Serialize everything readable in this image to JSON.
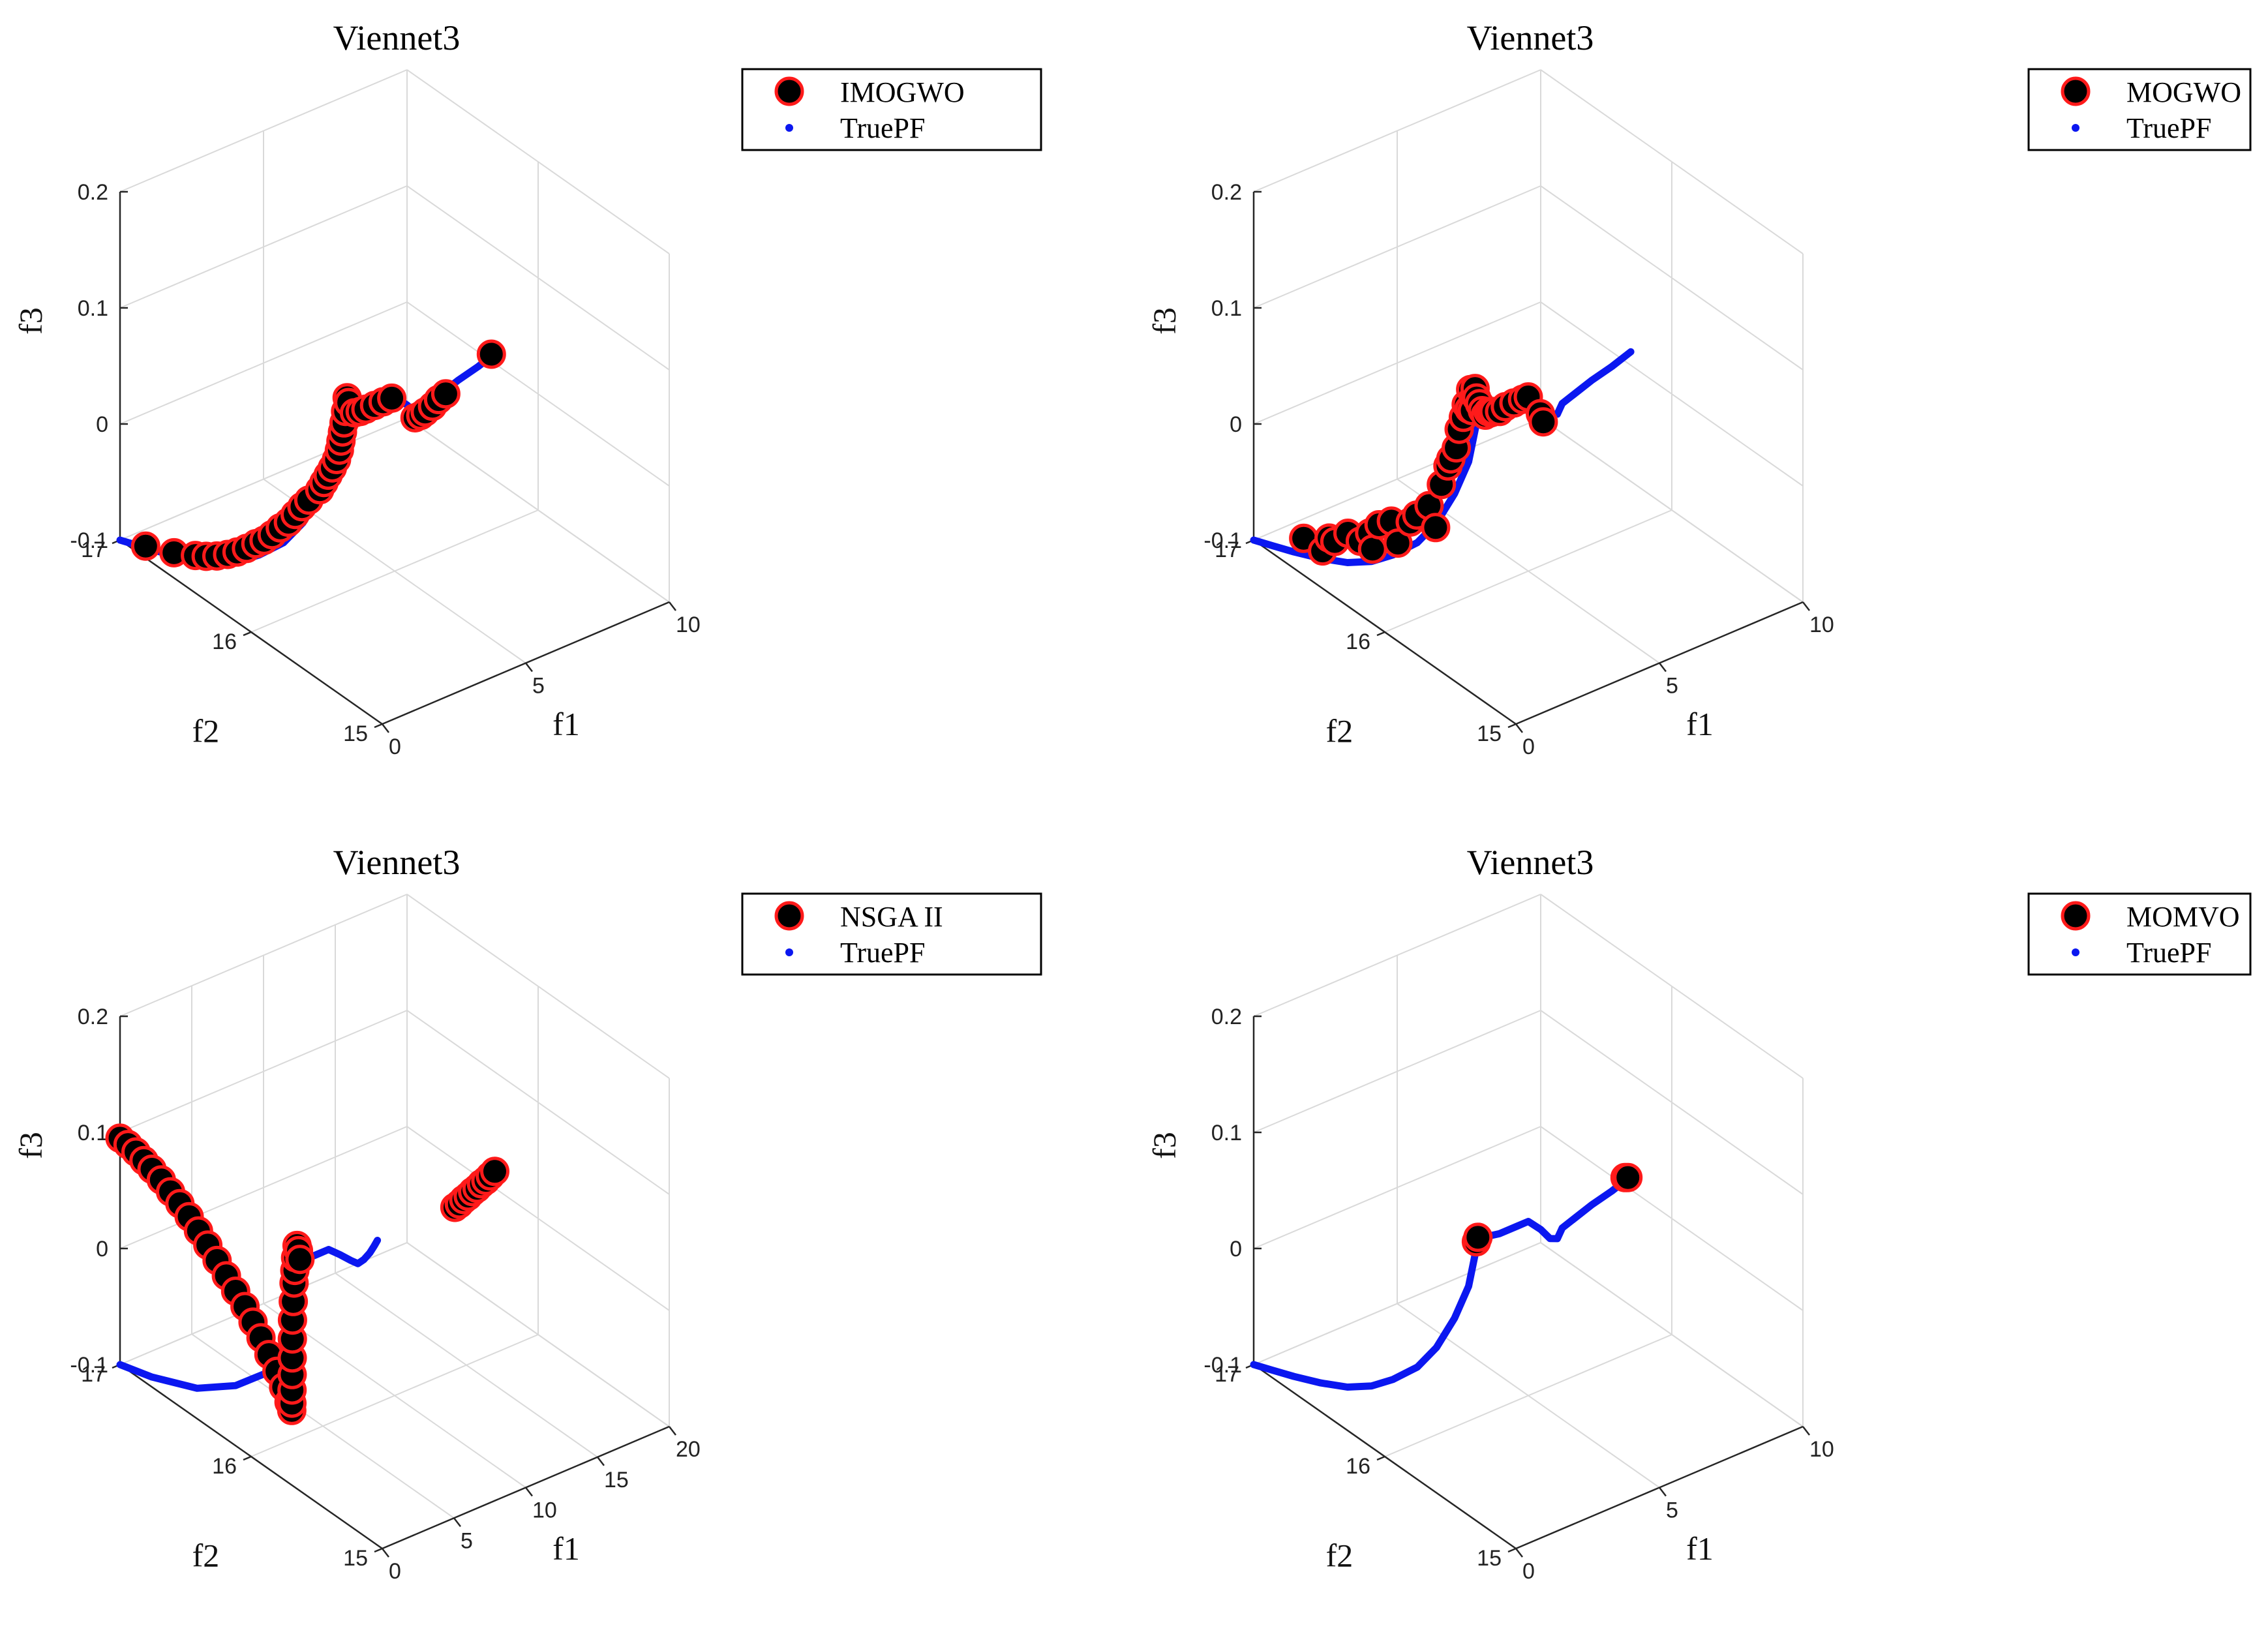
{
  "colors": {
    "marker_fill": "#000000",
    "marker_edge": "#ff1a1a",
    "truepf": "#0b17f0",
    "grid": "#d9d9d9",
    "axis": "#262626"
  },
  "chart_data": [
    {
      "type": "scatter",
      "title": "Viennet3",
      "xlabel": "f1",
      "ylabel": "f2",
      "zlabel": "f3",
      "xlim": [
        0,
        10
      ],
      "ylim": [
        15,
        17
      ],
      "zlim": [
        -0.1,
        0.2
      ],
      "xticks": [
        "0",
        "5",
        "10"
      ],
      "yticks": [
        "15",
        "16",
        "17"
      ],
      "zticks": [
        "-0.1",
        "0",
        "0.1",
        "0.2"
      ],
      "legend": [
        "IMOGWO",
        "TruePF"
      ],
      "legend_position": "top-right",
      "series": [
        {
          "name": "TruePF",
          "kind": "line",
          "f1": [
            0.0,
            0.2,
            0.4,
            0.6,
            0.8,
            1.0,
            1.2,
            1.5,
            1.8,
            2.2,
            2.6,
            3.0,
            3.25,
            3.4,
            3.6,
            4.0,
            4.6,
            5.0,
            5.2,
            5.3,
            5.6,
            6.0,
            6.6,
            7.2,
            8.0,
            8.8
          ],
          "f2": [
            17.0,
            16.9,
            16.78,
            16.62,
            16.46,
            16.32,
            16.2,
            16.08,
            16.0,
            15.95,
            15.93,
            15.96,
            15.99,
            16.0,
            16.0,
            16.0,
            16.0,
            16.0,
            15.95,
            15.9,
            15.91,
            15.96,
            15.98,
            16.0,
            16.02,
            16.05
          ],
          "f3": [
            -0.1,
            -0.099,
            -0.097,
            -0.092,
            -0.085,
            -0.075,
            -0.062,
            -0.045,
            -0.025,
            0.0,
            0.025,
            0.05,
            0.065,
            0.057,
            0.052,
            0.05,
            0.05,
            0.05,
            0.045,
            0.04,
            0.036,
            0.037,
            0.039,
            0.041,
            0.043,
            0.045
          ]
        },
        {
          "name": "IMOGWO",
          "kind": "points",
          "f1": [
            0.3,
            0.6,
            0.8,
            0.9,
            1.0,
            1.1,
            1.2,
            1.3,
            1.4,
            1.5,
            1.6,
            1.7,
            1.8,
            1.9,
            2.0,
            2.1,
            2.3,
            2.4,
            2.5,
            2.6,
            2.7,
            2.8,
            2.9,
            3.0,
            3.1,
            3.2,
            3.3,
            3.4,
            3.6,
            3.8,
            4.0,
            4.3,
            4.6,
            4.9,
            5.3,
            5.5,
            5.7,
            6.0,
            6.3,
            6.6,
            8.6
          ],
          "f2": [
            16.87,
            16.72,
            16.6,
            16.54,
            16.48,
            16.42,
            16.37,
            16.32,
            16.27,
            16.23,
            16.19,
            16.15,
            16.11,
            16.08,
            16.05,
            16.02,
            15.98,
            15.97,
            15.96,
            15.95,
            15.94,
            15.94,
            15.95,
            15.96,
            15.97,
            15.98,
            15.99,
            16.0,
            16.0,
            16.0,
            16.0,
            16.0,
            16.0,
            16.0,
            15.91,
            15.91,
            15.92,
            15.93,
            15.95,
            15.96,
            16.05
          ],
          "f3": [
            -0.098,
            -0.095,
            -0.09,
            -0.087,
            -0.083,
            -0.078,
            -0.073,
            -0.067,
            -0.06,
            -0.055,
            -0.048,
            -0.04,
            -0.033,
            -0.025,
            -0.017,
            -0.01,
            0.0,
            0.006,
            0.012,
            0.018,
            0.025,
            0.032,
            0.038,
            0.044,
            0.05,
            0.058,
            0.068,
            0.062,
            0.051,
            0.05,
            0.05,
            0.05,
            0.05,
            0.05,
            0.036,
            0.036,
            0.036,
            0.037,
            0.038,
            0.039,
            0.045
          ]
        }
      ]
    },
    {
      "type": "scatter",
      "title": "Viennet3",
      "xlabel": "f1",
      "ylabel": "f2",
      "zlabel": "f3",
      "xlim": [
        0,
        10
      ],
      "ylim": [
        15,
        17
      ],
      "zlim": [
        -0.1,
        0.2
      ],
      "xticks": [
        "0",
        "5",
        "10"
      ],
      "yticks": [
        "15",
        "16",
        "17"
      ],
      "zticks": [
        "-0.1",
        "0",
        "0.1",
        "0.2"
      ],
      "legend": [
        "MOGWO",
        "TruePF"
      ],
      "legend_position": "top-right",
      "series": [
        {
          "name": "TruePF",
          "kind": "line",
          "f1": [
            0.0,
            0.2,
            0.4,
            0.6,
            0.8,
            1.0,
            1.2,
            1.5,
            1.8,
            2.2,
            2.6,
            3.0,
            3.25,
            3.4,
            3.6,
            4.0,
            4.6,
            5.0,
            5.2,
            5.3,
            5.6,
            6.0,
            6.6,
            7.2,
            8.0,
            8.8
          ],
          "f2": [
            17.0,
            16.9,
            16.78,
            16.62,
            16.46,
            16.32,
            16.2,
            16.08,
            16.0,
            15.95,
            15.93,
            15.96,
            15.99,
            16.0,
            16.0,
            16.0,
            16.0,
            16.0,
            15.95,
            15.9,
            15.91,
            15.96,
            15.98,
            16.0,
            16.02,
            16.05
          ],
          "f3": [
            -0.1,
            -0.099,
            -0.097,
            -0.092,
            -0.085,
            -0.075,
            -0.062,
            -0.045,
            -0.025,
            0.0,
            0.025,
            0.05,
            0.065,
            0.057,
            0.052,
            0.05,
            0.05,
            0.05,
            0.045,
            0.04,
            0.036,
            0.037,
            0.039,
            0.041,
            0.043,
            0.045
          ]
        },
        {
          "name": "MOGWO",
          "kind": "points",
          "f1": [
            0.6,
            0.8,
            0.8,
            1.0,
            1.0,
            1.2,
            1.3,
            1.4,
            1.4,
            1.6,
            1.6,
            1.8,
            1.8,
            2.0,
            2.0,
            2.2,
            2.2,
            2.3,
            2.4,
            2.5,
            2.6,
            2.7,
            2.8,
            2.9,
            3.0,
            3.0,
            3.1,
            3.2,
            3.3,
            3.4,
            3.5,
            3.6,
            3.7,
            3.8,
            4.0,
            4.2,
            4.5,
            4.8,
            5.0,
            5.1,
            5.2
          ],
          "f2": [
            16.75,
            16.65,
            16.6,
            16.6,
            16.5,
            16.45,
            16.4,
            16.4,
            16.35,
            16.3,
            16.25,
            16.2,
            16.15,
            16.1,
            16.05,
            16.05,
            16.0,
            16.0,
            15.98,
            15.98,
            15.97,
            15.97,
            15.97,
            15.98,
            15.98,
            15.99,
            15.99,
            16.0,
            16.0,
            16.0,
            16.0,
            16.0,
            16.0,
            16.0,
            16.0,
            16.0,
            16.0,
            16.0,
            16.0,
            15.93,
            15.93
          ],
          "f3": [
            -0.085,
            -0.09,
            -0.075,
            -0.08,
            -0.065,
            -0.07,
            -0.06,
            -0.075,
            -0.05,
            -0.045,
            -0.06,
            -0.04,
            -0.03,
            -0.02,
            -0.035,
            0.0,
            0.02,
            0.025,
            0.035,
            0.05,
            0.06,
            0.07,
            0.065,
            0.08,
            0.072,
            0.06,
            0.078,
            0.068,
            0.062,
            0.055,
            0.05,
            0.052,
            0.05,
            0.05,
            0.048,
            0.05,
            0.05,
            0.05,
            0.05,
            0.04,
            0.032
          ]
        }
      ]
    },
    {
      "type": "scatter",
      "title": "Viennet3",
      "xlabel": "f1",
      "ylabel": "f2",
      "zlabel": "f3",
      "xlim": [
        0,
        20
      ],
      "ylim": [
        15,
        17
      ],
      "zlim": [
        -0.1,
        0.2
      ],
      "xticks": [
        "0",
        "5",
        "10",
        "15",
        "20"
      ],
      "yticks": [
        "15",
        "16",
        "17"
      ],
      "zticks": [
        "-0.1",
        "0",
        "0.1",
        "0.2"
      ],
      "legend": [
        "NSGA II",
        "TruePF"
      ],
      "legend_position": "top-right",
      "series": [
        {
          "name": "TruePF",
          "kind": "line",
          "f1": [
            0.0,
            0.4,
            0.8,
            1.2,
            1.6,
            2.0,
            2.5,
            3.0,
            3.2,
            3.4,
            3.6,
            4.0,
            4.6,
            5.4,
            6.0,
            6.4,
            6.8,
            7.3,
            7.9,
            8.4,
            8.8
          ],
          "f2": [
            17.0,
            16.8,
            16.5,
            16.25,
            16.05,
            15.95,
            15.93,
            15.97,
            15.99,
            16.0,
            16.0,
            16.0,
            16.0,
            16.0,
            15.98,
            15.94,
            15.93,
            15.94,
            15.96,
            15.98,
            16.0
          ],
          "f3": [
            -0.1,
            -0.097,
            -0.085,
            -0.065,
            -0.04,
            -0.01,
            0.025,
            0.055,
            0.065,
            0.06,
            0.052,
            0.05,
            0.05,
            0.05,
            0.044,
            0.04,
            0.036,
            0.036,
            0.037,
            0.039,
            0.04
          ]
        },
        {
          "name": "NSGA II",
          "kind": "points",
          "f1": [
            0.0,
            0.1,
            0.2,
            0.3,
            0.4,
            0.5,
            0.6,
            0.7,
            0.8,
            0.9,
            1.0,
            1.1,
            1.2,
            1.3,
            1.4,
            1.5,
            1.6,
            1.7,
            1.8,
            1.9,
            2.0,
            2.1,
            2.2,
            2.3,
            2.4,
            2.5,
            2.6,
            2.7,
            2.8,
            2.9,
            3.0,
            3.1,
            3.2,
            3.3,
            3.4,
            14.2,
            14.6,
            15.0,
            15.4,
            15.8,
            16.2,
            16.6,
            17.0,
            17.4,
            17.8
          ],
          "f2": [
            17.0,
            16.95,
            16.9,
            16.85,
            16.8,
            16.74,
            16.68,
            16.62,
            16.56,
            16.5,
            16.44,
            16.38,
            16.32,
            16.26,
            16.2,
            16.15,
            16.1,
            16.05,
            16.0,
            15.96,
            15.93,
            15.92,
            15.93,
            15.94,
            15.95,
            15.96,
            15.97,
            15.98,
            15.985,
            15.99,
            15.995,
            16.0,
            16.0,
            16.0,
            16.0,
            16.0,
            16.01,
            16.02,
            16.03,
            16.04,
            16.05,
            16.06,
            16.07,
            16.08,
            16.09
          ],
          "f3": [
            0.095,
            0.093,
            0.09,
            0.086,
            0.082,
            0.077,
            0.071,
            0.065,
            0.058,
            0.05,
            0.042,
            0.033,
            0.024,
            0.015,
            0.006,
            -0.004,
            -0.014,
            -0.025,
            -0.036,
            -0.047,
            -0.058,
            -0.065,
            -0.06,
            -0.05,
            -0.038,
            -0.025,
            -0.01,
            0.005,
            0.02,
            0.035,
            0.045,
            0.055,
            0.065,
            0.06,
            0.052,
            0.04,
            0.04,
            0.041,
            0.041,
            0.042,
            0.042,
            0.043,
            0.043,
            0.044,
            0.045
          ]
        }
      ]
    },
    {
      "type": "scatter",
      "title": "Viennet3",
      "xlabel": "f1",
      "ylabel": "f2",
      "zlabel": "f3",
      "xlim": [
        0,
        10
      ],
      "ylim": [
        15,
        17
      ],
      "zlim": [
        -0.1,
        0.2
      ],
      "xticks": [
        "0",
        "5",
        "10"
      ],
      "yticks": [
        "15",
        "16",
        "17"
      ],
      "zticks": [
        "-0.1",
        "0",
        "0.1",
        "0.2"
      ],
      "legend": [
        "MOMVO",
        "TruePF"
      ],
      "legend_position": "top-right",
      "series": [
        {
          "name": "TruePF",
          "kind": "line",
          "f1": [
            0.0,
            0.2,
            0.4,
            0.6,
            0.8,
            1.0,
            1.2,
            1.5,
            1.8,
            2.2,
            2.6,
            3.0,
            3.25,
            3.4,
            3.6,
            4.0,
            4.6,
            5.0,
            5.2,
            5.3,
            5.6,
            6.0,
            6.6,
            7.2,
            8.0,
            8.8
          ],
          "f2": [
            17.0,
            16.9,
            16.78,
            16.62,
            16.46,
            16.32,
            16.2,
            16.08,
            16.0,
            15.95,
            15.93,
            15.96,
            15.99,
            16.0,
            16.0,
            16.0,
            16.0,
            16.0,
            15.95,
            15.9,
            15.91,
            15.96,
            15.98,
            16.0,
            16.02,
            16.05
          ],
          "f3": [
            -0.1,
            -0.099,
            -0.097,
            -0.092,
            -0.085,
            -0.075,
            -0.062,
            -0.045,
            -0.025,
            0.0,
            0.025,
            0.05,
            0.065,
            0.057,
            0.052,
            0.05,
            0.05,
            0.05,
            0.045,
            0.04,
            0.036,
            0.037,
            0.039,
            0.041,
            0.043,
            0.045
          ]
        },
        {
          "name": "MOMVO",
          "kind": "points",
          "f1": [
            3.1,
            3.2,
            8.6,
            8.7
          ],
          "f2": [
            15.98,
            15.99,
            16.05,
            16.05
          ],
          "f3": [
            0.054,
            0.056,
            0.046,
            0.045
          ]
        }
      ]
    }
  ]
}
